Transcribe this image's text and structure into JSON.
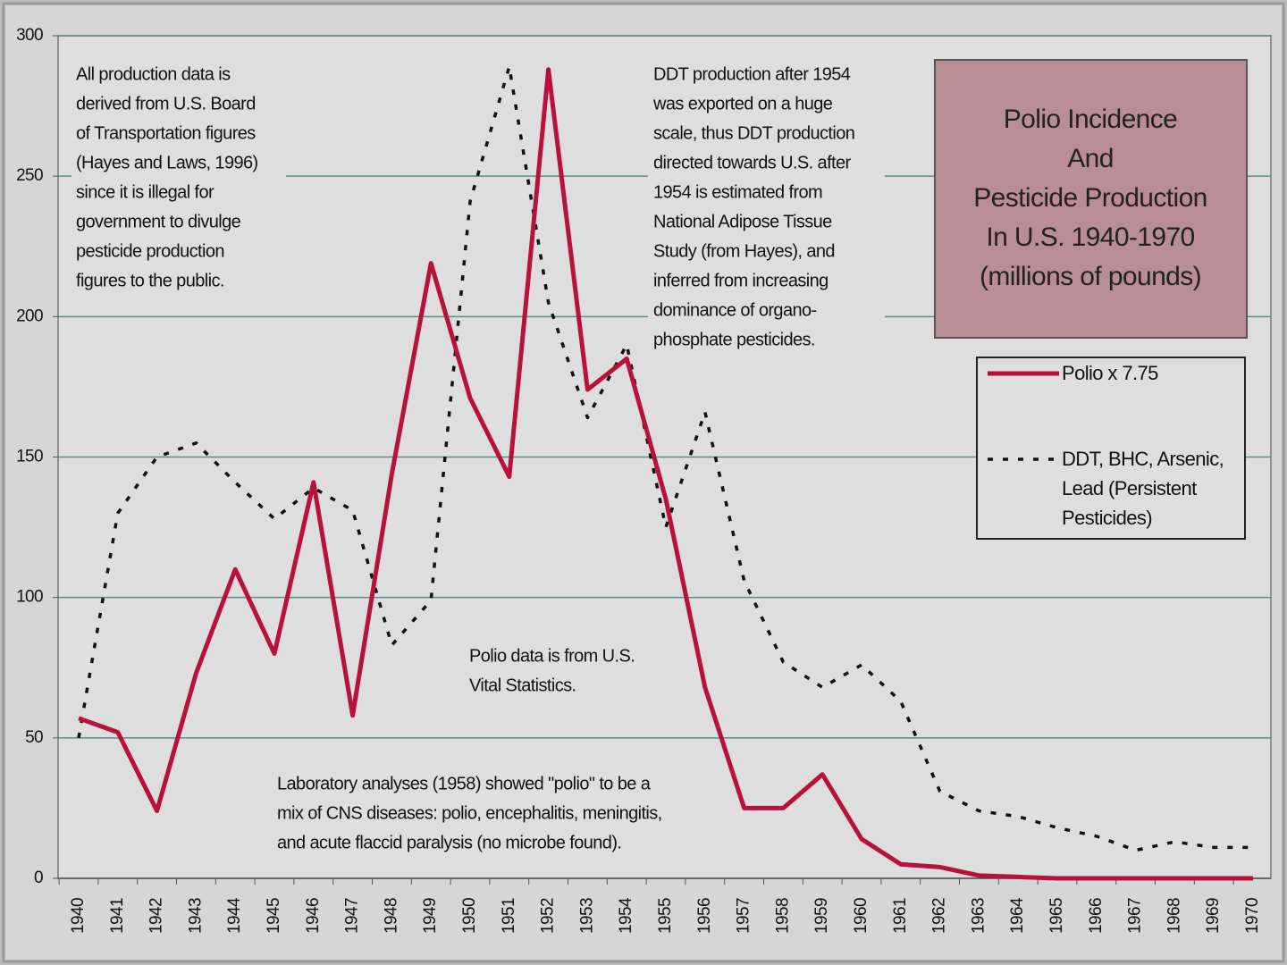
{
  "chart_data": {
    "type": "line",
    "title": [
      "Polio Incidence",
      "And",
      "Pesticide Production",
      "In U.S. 1940-1970",
      "(millions of pounds)"
    ],
    "categories": [
      "1940",
      "1941",
      "1942",
      "1943",
      "1944",
      "1945",
      "1946",
      "1947",
      "1948",
      "1949",
      "1950",
      "1951",
      "1952",
      "1953",
      "1954",
      "1955",
      "1956",
      "1957",
      "1958",
      "1959",
      "1960",
      "1961",
      "1962",
      "1963",
      "1964",
      "1965",
      "1966",
      "1967",
      "1968",
      "1969",
      "1970"
    ],
    "series": [
      {
        "name": "Polio x 7.75",
        "color": "#b8123c",
        "style": "solid",
        "values": [
          57,
          52,
          24,
          73,
          110,
          80,
          141,
          58,
          144,
          219,
          171,
          143,
          288,
          174,
          185,
          135,
          68,
          25,
          25,
          37,
          14,
          5,
          4,
          1,
          0.5,
          0,
          0,
          0,
          0,
          0,
          0
        ]
      },
      {
        "name": "DDT, BHC, Arsenic, Lead (Persistent Pesticides)",
        "color": "#111111",
        "style": "dotted",
        "values": [
          50,
          130,
          150,
          155,
          141,
          128,
          139,
          131,
          83,
          99,
          241,
          289,
          205,
          164,
          190,
          125,
          166,
          106,
          77,
          68,
          76,
          63,
          31,
          24,
          22,
          18,
          15,
          10,
          13,
          11,
          11
        ]
      }
    ],
    "ylim": [
      0,
      300
    ],
    "yticks": [
      0,
      50,
      100,
      150,
      200,
      250,
      300
    ],
    "grid": true,
    "legend_position": "right",
    "annotations": [
      [
        "All production data is",
        "derived from U.S. Board",
        "of Transportation figures",
        "(Hayes and Laws, 1996)",
        "since it is illegal for",
        "government to divulge",
        "pesticide production",
        "figures to the public."
      ],
      [
        "DDT production after 1954",
        "was exported on a huge",
        "scale, thus DDT production",
        "directed towards U.S. after",
        "1954 is estimated from",
        "National Adipose Tissue",
        "Study (from Hayes), and",
        "inferred from increasing",
        "dominance of organo-",
        "phosphate pesticides."
      ],
      [
        "Polio data is from U.S.",
        "Vital Statistics."
      ],
      [
        "Laboratory analyses (1958) showed \"polio\" to be a",
        "mix of CNS diseases: polio, encephalitis, meningitis,",
        "and acute flaccid paralysis (no microbe found)."
      ]
    ]
  }
}
